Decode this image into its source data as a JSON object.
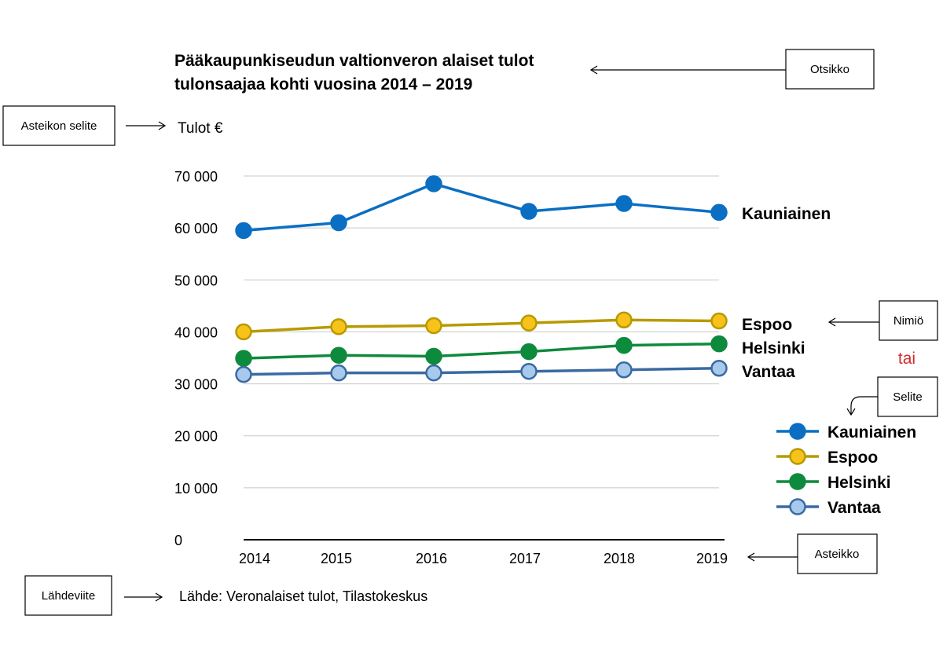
{
  "chart_data": {
    "type": "line",
    "title": [
      "Pääkaupunkiseudun valtionveron alaiset tulot",
      "tulonsaajaa kohti vuosina 2014 – 2019"
    ],
    "ylabel": "Tulot €",
    "xlabel": "",
    "categories": [
      "2014",
      "2015",
      "2016",
      "2017",
      "2018",
      "2019"
    ],
    "ylim": [
      0,
      70000
    ],
    "yticks": [
      0,
      10000,
      20000,
      30000,
      40000,
      50000,
      60000,
      70000
    ],
    "ytick_labels": [
      "0",
      "10 000",
      "20 000",
      "30 000",
      "40 000",
      "50 000",
      "60 000",
      "70 000"
    ],
    "grid": true,
    "series": [
      {
        "name": "Kauniainen",
        "values": [
          59500,
          61000,
          68500,
          63200,
          64700,
          63000
        ],
        "color": "#0a6fc2",
        "marker_fill": "#0a6fc2",
        "marker_stroke": "#0a6fc2"
      },
      {
        "name": "Espoo",
        "values": [
          40000,
          41000,
          41200,
          41700,
          42300,
          42100
        ],
        "color": "#b89a00",
        "marker_fill": "#f7c21a",
        "marker_stroke": "#b89a00"
      },
      {
        "name": "Helsinki",
        "values": [
          34900,
          35500,
          35300,
          36200,
          37400,
          37700
        ],
        "color": "#0e8a3c",
        "marker_fill": "#0e8a3c",
        "marker_stroke": "#0e8a3c"
      },
      {
        "name": "Vantaa",
        "values": [
          31800,
          32100,
          32100,
          32400,
          32700,
          33000
        ],
        "color": "#3a6aa3",
        "marker_fill": "#a7caec",
        "marker_stroke": "#3a6aa3"
      }
    ],
    "legend": [
      "Kauniainen",
      "Espoo",
      "Helsinki",
      "Vantaa"
    ],
    "source": "Lähde: Veronalaiset tulot, Tilastokeskus"
  },
  "annotations": {
    "otsikko": "Otsikko",
    "asteikon_selite": "Asteikon selite",
    "nimio": "Nimiö",
    "tai": "tai",
    "selite": "Selite",
    "asteikko": "Asteikko",
    "lahdeviite": "Lähdeviite"
  },
  "colors": {
    "grid": "#c8c8c8",
    "axis": "#000000",
    "tai": "#d22b2b"
  }
}
